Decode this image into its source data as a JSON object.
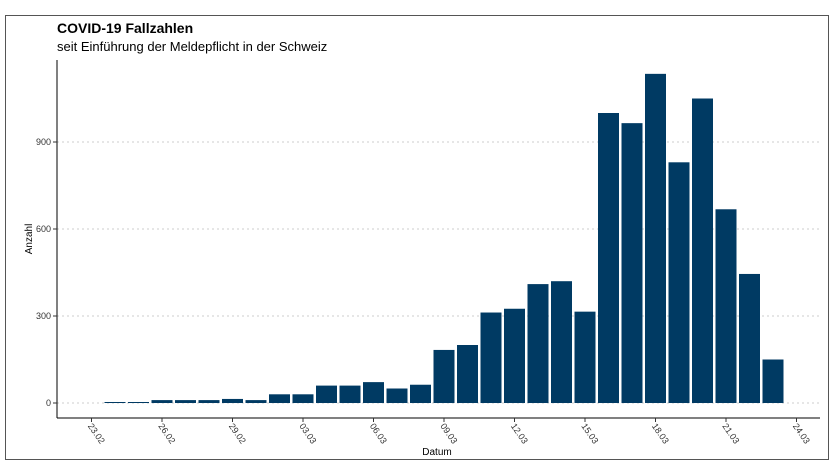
{
  "chart_data": {
    "type": "bar",
    "title": "COVID-19 Fallzahlen",
    "subtitle": "seit Einführung der Meldepflicht in der Schweiz",
    "xlabel": "Datum",
    "ylabel": "Anzahl",
    "x_ticks": [
      "23.02",
      "26.02",
      "29.02",
      "03.03",
      "06.03",
      "09.03",
      "12.03",
      "15.03",
      "18.03",
      "21.03",
      "24.03"
    ],
    "y_ticks": [
      0,
      300,
      600,
      900
    ],
    "ylim": [
      0,
      1150
    ],
    "grid": "horizontal dotted",
    "bar_color": "#003a63",
    "start_date": "2020-02-24",
    "categories": [
      "24.02",
      "25.02",
      "26.02",
      "27.02",
      "28.02",
      "29.02",
      "01.03",
      "02.03",
      "03.03",
      "04.03",
      "05.03",
      "06.03",
      "07.03",
      "08.03",
      "09.03",
      "10.03",
      "11.03",
      "12.03",
      "13.03",
      "14.03",
      "15.03",
      "16.03",
      "17.03",
      "18.03",
      "19.03",
      "20.03",
      "21.03",
      "22.03",
      "23.03"
    ],
    "values": [
      1,
      1,
      10,
      10,
      10,
      14,
      10,
      30,
      30,
      60,
      60,
      72,
      50,
      63,
      183,
      200,
      312,
      325,
      410,
      420,
      315,
      1000,
      965,
      1135,
      830,
      1050,
      668,
      445,
      150
    ]
  }
}
